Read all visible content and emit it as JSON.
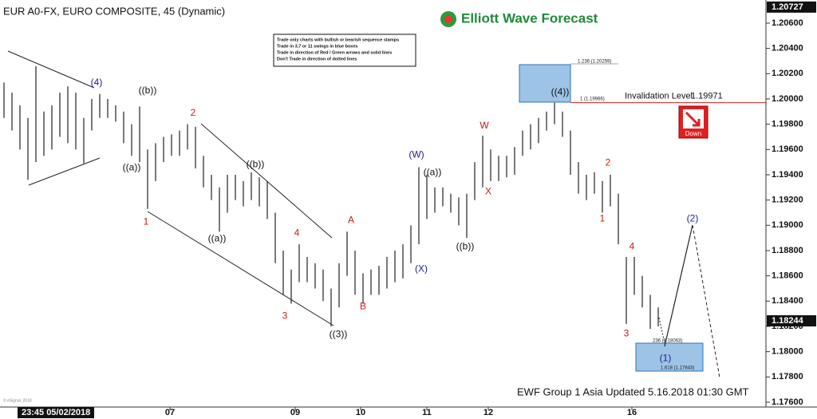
{
  "chart_data": {
    "type": "ohlc",
    "title": "EUR A0-FX, EURO COMPOSITE, 45 (Dynamic)",
    "logo": "Elliott Wave Forecast",
    "notes": [
      "Trade only charts with bullish or bearish sequence stamps",
      "Trade in 3,7 or 11 swings in blue boxes",
      "Trade in direction of Red / Green arrows and solid lines",
      "Don't Trade in direction of dotted lines"
    ],
    "footer": "EWF Group 1 Asia Updated 5.16.2018 01:30 GMT",
    "timestamp": "23:45 05/02/2018",
    "copyright": "© eSignal, 2018",
    "signal": "Down",
    "invalidation_label": "Invalidation Level",
    "invalidation_value": 1.19971,
    "high_price": 1.20727,
    "last_price": 1.18244,
    "fib_labels": [
      "1.236 (1.20259)",
      "1 (1.19966)",
      "236 (1.18063)",
      "1.618 (1.17843)"
    ],
    "color": "#222222",
    "lows": [
      1.1985,
      1.1975,
      1.196,
      1.1936,
      1.195,
      1.1955,
      1.196,
      1.197,
      1.1965,
      1.196,
      1.1949,
      1.1975,
      1.1985,
      1.1985,
      1.1982,
      1.1965,
      1.1955,
      1.195,
      1.1913,
      1.1935,
      1.195,
      1.1955,
      1.1955,
      1.196,
      1.1945,
      1.193,
      1.192,
      1.1895,
      1.191,
      1.192,
      1.1915,
      1.192,
      1.1915,
      1.1905,
      1.187,
      1.1845,
      1.1838,
      1.1855,
      1.1855,
      1.185,
      1.184,
      1.182,
      1.1835,
      1.186,
      1.1845,
      1.1838,
      1.1845,
      1.1845,
      1.185,
      1.1855,
      1.1858,
      1.187,
      1.1885,
      1.1905,
      1.191,
      1.1915,
      1.191,
      1.19,
      1.189,
      1.192,
      1.193,
      1.1935,
      1.1935,
      1.1938,
      1.194,
      1.1955,
      1.196,
      1.1965,
      1.1975,
      1.198,
      1.197,
      1.194,
      1.1925,
      1.192,
      1.1925,
      1.191,
      1.1915,
      1.1885,
      1.1822,
      1.1845,
      1.1835,
      1.1818,
      1.182
    ],
    "highs": [
      1.2013,
      1.2005,
      1.1995,
      1.1985,
      1.2026,
      1.199,
      1.1995,
      1.2005,
      1.201,
      1.2005,
      1.1985,
      1.2,
      1.2004,
      1.2,
      1.1995,
      1.199,
      1.198,
      1.1994,
      1.196,
      1.1965,
      1.197,
      1.1972,
      1.1975,
      1.198,
      1.1978,
      1.1955,
      1.194,
      1.193,
      1.194,
      1.194,
      1.1935,
      1.1942,
      1.1938,
      1.1935,
      1.191,
      1.188,
      1.1865,
      1.1885,
      1.1875,
      1.187,
      1.1865,
      1.185,
      1.187,
      1.1895,
      1.188,
      1.1862,
      1.1865,
      1.1868,
      1.1875,
      1.188,
      1.1885,
      1.19,
      1.1946,
      1.194,
      1.193,
      1.193,
      1.1925,
      1.1922,
      1.1925,
      1.195,
      1.1971,
      1.196,
      1.1955,
      1.1955,
      1.1962,
      1.1975,
      1.198,
      1.1985,
      1.199,
      1.1997,
      1.199,
      1.1975,
      1.195,
      1.194,
      1.1942,
      1.1935,
      1.194,
      1.1925,
      1.1875,
      1.1875,
      1.186,
      1.1845,
      1.1835
    ],
    "xlim": [
      0,
      96
    ],
    "xticks": [
      {
        "value": 21.3,
        "label": "07"
      },
      {
        "value": 37,
        "label": "09"
      },
      {
        "value": 45.2,
        "label": "10"
      },
      {
        "value": 53.5,
        "label": "11"
      },
      {
        "value": 61.2,
        "label": "12"
      },
      {
        "value": 79.2,
        "label": "16"
      }
    ],
    "ylim": [
      1.17562,
      1.20783
    ],
    "yticks": [
      {
        "value": 1.206,
        "label": "1.20600"
      },
      {
        "value": 1.204,
        "label": "1.20400"
      },
      {
        "value": 1.202,
        "label": "1.20200"
      },
      {
        "value": 1.2,
        "label": "1.20000"
      },
      {
        "value": 1.198,
        "label": "1.19800"
      },
      {
        "value": 1.196,
        "label": "1.19600"
      },
      {
        "value": 1.194,
        "label": "1.19400"
      },
      {
        "value": 1.192,
        "label": "1.19200"
      },
      {
        "value": 1.19,
        "label": "1.19000"
      },
      {
        "value": 1.188,
        "label": "1.18800"
      },
      {
        "value": 1.186,
        "label": "1.18600"
      },
      {
        "value": 1.184,
        "label": "1.18400"
      },
      {
        "value": 1.182,
        "label": "1.18200"
      },
      {
        "value": 1.18,
        "label": "1.18000"
      },
      {
        "value": 1.178,
        "label": "1.17800"
      },
      {
        "value": 1.176,
        "label": "1.17600"
      }
    ],
    "annotations": [
      {
        "text": "(4)",
        "x": 12.1,
        "y": 1.20126,
        "color": "#1f1f8f"
      },
      {
        "text": "((b))",
        "x": 18.5,
        "y": 1.20063,
        "color": "#111111"
      },
      {
        "text": "((a))",
        "x": 16.5,
        "y": 1.19456,
        "color": "#111111"
      },
      {
        "text": "1",
        "x": 18.3,
        "y": 1.19026,
        "color": "#cc1b12"
      },
      {
        "text": "2",
        "x": 24.2,
        "y": 1.19886,
        "color": "#cc1b12"
      },
      {
        "text": "((b))",
        "x": 32,
        "y": 1.19481,
        "color": "#111111"
      },
      {
        "text": "((a))",
        "x": 27.2,
        "y": 1.18894,
        "color": "#111111"
      },
      {
        "text": "4",
        "x": 37.2,
        "y": 1.18938,
        "color": "#cc1b12"
      },
      {
        "text": "3",
        "x": 35.7,
        "y": 1.18281,
        "color": "#cc1b12"
      },
      {
        "text": "A",
        "x": 44,
        "y": 1.19039,
        "color": "#cc1b12"
      },
      {
        "text": "B",
        "x": 45.5,
        "y": 1.18356,
        "color": "#cc1b12"
      },
      {
        "text": "((3))",
        "x": 42.4,
        "y": 1.18135,
        "color": "#111111"
      },
      {
        "text": "(W)",
        "x": 52.2,
        "y": 1.19557,
        "color": "#1f1f8f"
      },
      {
        "text": "((a))",
        "x": 54.2,
        "y": 1.19418,
        "color": "#111111"
      },
      {
        "text": "(X)",
        "x": 52.8,
        "y": 1.18653,
        "color": "#1f1f8f"
      },
      {
        "text": "((b))",
        "x": 58.3,
        "y": 1.1883,
        "color": "#111111"
      },
      {
        "text": "W",
        "x": 60.7,
        "y": 1.19785,
        "color": "#cc1b12"
      },
      {
        "text": "X",
        "x": 61.2,
        "y": 1.19266,
        "color": "#cc1b12"
      },
      {
        "text": "((4))",
        "x": 70.2,
        "y": 1.2005,
        "color": "#111111"
      },
      {
        "text": "2",
        "x": 76.2,
        "y": 1.19494,
        "color": "#cc1b12"
      },
      {
        "text": "1",
        "x": 75.5,
        "y": 1.19052,
        "color": "#cc1b12"
      },
      {
        "text": "4",
        "x": 79.2,
        "y": 1.1883,
        "color": "#cc1b12"
      },
      {
        "text": "3",
        "x": 78.5,
        "y": 1.18141,
        "color": "#cc1b12"
      },
      {
        "text": "(1)",
        "x": 83.4,
        "y": 1.17946,
        "color": "#1f1f8f"
      },
      {
        "text": "(2)",
        "x": 86.8,
        "y": 1.19052,
        "color": "#1f1f8f"
      }
    ]
  }
}
